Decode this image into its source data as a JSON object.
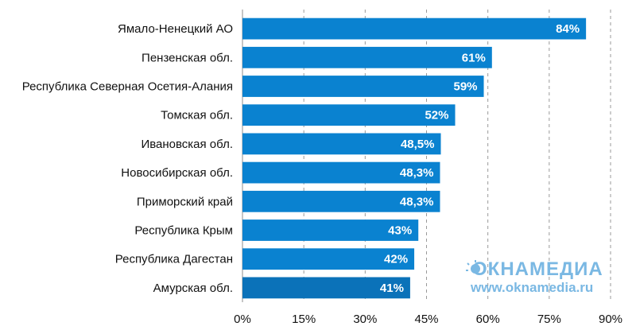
{
  "chart_data": {
    "type": "bar",
    "orientation": "horizontal",
    "categories": [
      "Ямало-Ненецкий АО",
      "Пензенская обл.",
      "Республика Северная Осетия-Алания",
      "Томская обл.",
      "Ивановская обл.",
      "Новосибирская обл.",
      "Приморский край",
      "Республика Крым",
      "Республика Дагестан",
      "Амурская обл."
    ],
    "values": [
      84,
      61,
      59,
      52,
      48.5,
      48.3,
      48.3,
      43,
      42,
      41
    ],
    "data_labels": [
      "84%",
      "61%",
      "59%",
      "52%",
      "48,5%",
      "48,3%",
      "48,3%",
      "43%",
      "42%",
      "41%"
    ],
    "xlim": [
      0,
      90
    ],
    "xticks": [
      0,
      15,
      30,
      45,
      60,
      75,
      90
    ],
    "xtick_labels": [
      "0%",
      "15%",
      "30%",
      "45%",
      "60%",
      "75%",
      "90%"
    ],
    "grid": "vertical dashed",
    "title": "",
    "xlabel": "",
    "ylabel": "",
    "bar_color": "#0a82d0",
    "bar_color_last": "#0b72b9"
  },
  "watermark": {
    "logo_text": "ОКНАМЕДИА",
    "url": "www.oknamedia.ru",
    "color": "#7ab8e3"
  }
}
